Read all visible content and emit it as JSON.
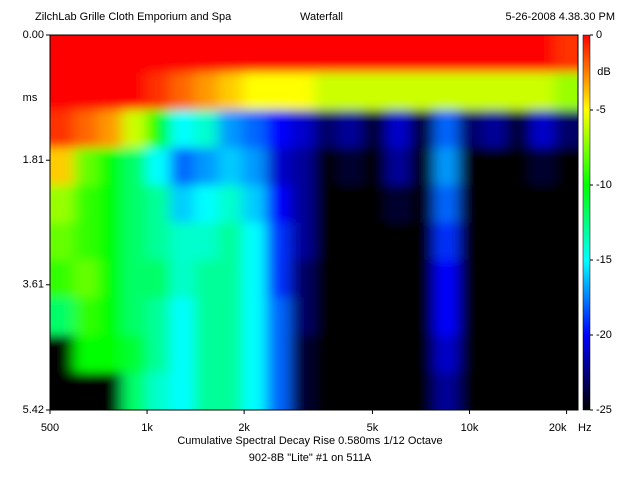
{
  "chart_data": {
    "type": "heatmap",
    "title": "Waterfall",
    "header_left": "ZilchLab Grille Cloth Emporium and Spa",
    "header_right": "5-26-2008 4.38.30 PM",
    "x_label": "Cumulative Spectral Decay   Rise 0.580ms   1/12 Octave",
    "subtitle": "902-8B \"Lite\" #1 on 511A",
    "x_unit": "Hz",
    "y_label": "ms",
    "z_label": "dB",
    "log_x": true,
    "xlim": [
      500,
      21700
    ],
    "xticks": [
      500,
      {
        "value": 1000,
        "label": "1k"
      },
      {
        "value": 2000,
        "label": "2k"
      },
      {
        "value": 5000,
        "label": "5k"
      },
      {
        "value": 10000,
        "label": "10k"
      },
      {
        "value": 20000,
        "label": "20k"
      }
    ],
    "ylim": [
      0,
      5.42
    ],
    "yticks": [
      {
        "value": 0,
        "label": "0.00"
      },
      1.81,
      3.61,
      5.42
    ],
    "zlim": [
      -25,
      0
    ],
    "zticks": [
      0,
      -5,
      -10,
      -15,
      -20,
      -25
    ],
    "colorscale": [
      "#000000",
      "#0000ff",
      "#00ffff",
      "#00ff00",
      "#ffff00",
      "#ff0000"
    ],
    "x": [
      544,
      646,
      768,
      911,
      1082,
      1284,
      1524,
      1810,
      2148,
      2551,
      3027,
      3593,
      4266,
      5063,
      6013,
      7135,
      8470,
      10060,
      11935,
      14170,
      16820,
      19970
    ],
    "y": [
      0.27,
      0.81,
      1.36,
      1.9,
      2.44,
      2.98,
      3.52,
      4.07,
      4.61,
      5.15
    ],
    "z": [
      [
        0,
        0,
        0,
        0,
        0,
        0,
        0,
        0,
        0,
        0,
        0,
        0,
        0,
        0,
        0,
        0,
        0,
        0,
        0,
        0,
        0,
        -1
      ],
      [
        0,
        0,
        0,
        0,
        -1,
        -2,
        -3,
        -4,
        -5,
        -5,
        -5,
        -6,
        -6,
        -6,
        -6,
        -6,
        -6,
        -6,
        -6,
        -6,
        -6,
        -7
      ],
      [
        -1,
        -2,
        -3,
        -6,
        -10,
        -15,
        -14,
        -17,
        -18,
        -20,
        -21,
        -23,
        -22,
        -24,
        -21,
        -24,
        -18,
        -23,
        -22,
        -24,
        -21,
        -23
      ],
      [
        -4,
        -8,
        -10,
        -12,
        -15,
        -18,
        -17,
        -16,
        -17,
        -21,
        -22,
        -25,
        -24,
        -25,
        -22,
        -25,
        -17,
        -25,
        -25,
        -25,
        -24,
        -25
      ],
      [
        -7,
        -9,
        -10,
        -12,
        -13,
        -16,
        -15,
        -14,
        -16,
        -20,
        -22,
        -25,
        -25,
        -25,
        -24,
        -25,
        -18,
        -25,
        -25,
        -25,
        -25,
        -25
      ],
      [
        -8,
        -9,
        -10,
        -12,
        -13,
        -14,
        -14,
        -13,
        -15,
        -19,
        -22,
        -25,
        -25,
        -25,
        -25,
        -25,
        -19,
        -25,
        -25,
        -25,
        -25,
        -25
      ],
      [
        -9,
        -8,
        -10,
        -12,
        -12,
        -14,
        -13,
        -13,
        -15,
        -19,
        -23,
        -25,
        -25,
        -25,
        -25,
        -25,
        -20,
        -25,
        -25,
        -25,
        -25,
        -25
      ],
      [
        -12,
        -9,
        -10,
        -12,
        -13,
        -15,
        -13,
        -13,
        -15,
        -18,
        -23,
        -25,
        -25,
        -25,
        -25,
        -25,
        -20,
        -25,
        -25,
        -25,
        -25,
        -25
      ],
      [
        -25,
        -10,
        -10,
        -11,
        -13,
        -15,
        -13,
        -13,
        -15,
        -18,
        -24,
        -25,
        -25,
        -25,
        -25,
        -25,
        -21,
        -25,
        -25,
        -25,
        -25,
        -25
      ],
      [
        -25,
        -25,
        -25,
        -12,
        -14,
        -15,
        -13,
        -13,
        -15,
        -18,
        -24,
        -25,
        -25,
        -25,
        -25,
        -25,
        -22,
        -25,
        -25,
        -25,
        -25,
        -25
      ]
    ]
  }
}
